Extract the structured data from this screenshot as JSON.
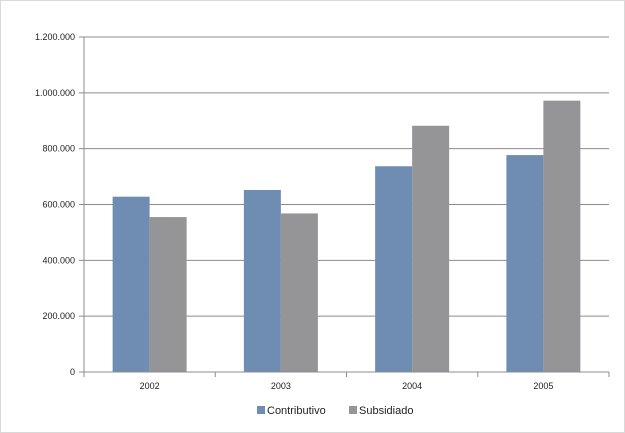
{
  "chart_data": {
    "type": "bar",
    "title": "",
    "xlabel": "",
    "ylabel": "",
    "categories": [
      "2002",
      "2003",
      "2004",
      "2005"
    ],
    "series": [
      {
        "name": "Contributivo",
        "color": "#6f8db3",
        "values": [
          628000,
          652000,
          737000,
          777000
        ]
      },
      {
        "name": "Subsidiado",
        "color": "#959598",
        "values": [
          555000,
          568000,
          882000,
          972000
        ]
      }
    ],
    "ylim": [
      0,
      1200000
    ],
    "y_ticks": [
      0,
      200000,
      400000,
      600000,
      800000,
      1000000,
      1200000
    ],
    "y_tick_labels": [
      "0",
      "200.000",
      "400.000",
      "600.000",
      "800.000",
      "1.000.000",
      "1.200.000"
    ],
    "grid": true,
    "legend_position": "bottom"
  }
}
